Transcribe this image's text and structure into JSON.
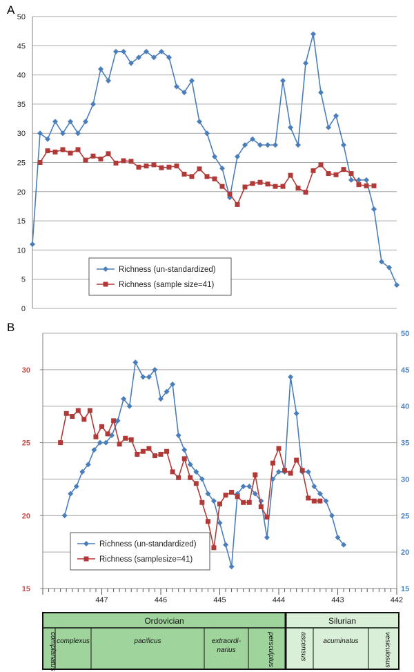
{
  "panels": [
    {
      "label": "A"
    },
    {
      "label": "B"
    }
  ],
  "chart_data": [
    {
      "type": "line",
      "panel": "A",
      "ylim": [
        0,
        50
      ],
      "yticks": [
        0,
        5,
        10,
        15,
        20,
        25,
        30,
        35,
        40,
        45,
        50
      ],
      "grid": true,
      "legend_position": "bottom-center",
      "series": [
        {
          "name": "Richness (un-standardized)",
          "color": "#4a7ebb",
          "marker": "diamond",
          "values": [
            11,
            30,
            29,
            32,
            30,
            32,
            30,
            32,
            35,
            41,
            39,
            44,
            44,
            42,
            43,
            44,
            43,
            44,
            43,
            38,
            37,
            39,
            32,
            30,
            26,
            24,
            19,
            26,
            28,
            29,
            28,
            28,
            28,
            39,
            31,
            28,
            42,
            47,
            37,
            31,
            33,
            28,
            22,
            22,
            22,
            17,
            8,
            7,
            4
          ]
        },
        {
          "name": "Richness (sample size=41)",
          "color": "#b03a37",
          "marker": "square",
          "values": [
            null,
            25,
            27,
            26.8,
            27.2,
            26.6,
            27.2,
            25.4,
            26.1,
            25.6,
            26.5,
            24.9,
            25.3,
            25.2,
            24.2,
            24.4,
            24.6,
            24.1,
            24.2,
            24.4,
            23,
            22.6,
            23.9,
            22.6,
            22.2,
            20.9,
            19.6,
            17.8,
            20.8,
            21.4,
            21.6,
            21.3,
            20.9,
            20.9,
            22.8,
            20.6,
            19.9,
            23.6,
            24.6,
            23.1,
            22.9,
            23.8,
            23.1,
            21.2,
            21,
            21,
            null,
            null,
            null
          ]
        }
      ]
    },
    {
      "type": "line",
      "panel": "B",
      "xlim": [
        448,
        442
      ],
      "xticks": [
        447,
        446,
        445,
        444,
        443,
        442
      ],
      "ylim_left": [
        15,
        32.5
      ],
      "yticks_left": [
        15,
        20,
        25,
        30
      ],
      "ylim_right": [
        15,
        50
      ],
      "yticks_right": [
        15,
        20,
        25,
        30,
        35,
        40,
        45,
        50
      ],
      "left_axis_color": "#c0504d",
      "right_axis_color": "#4f81bd",
      "grid": true,
      "legend_position": "bottom-center",
      "series": [
        {
          "name": "Richness (un-standardized)",
          "axis": "right",
          "color": "#4a7ebb",
          "marker": "diamond",
          "x": [
            447.63,
            447.53,
            447.43,
            447.33,
            447.23,
            447.13,
            447.03,
            446.93,
            446.83,
            446.73,
            446.63,
            446.53,
            446.43,
            446.3,
            446.2,
            446.1,
            446,
            445.9,
            445.8,
            445.7,
            445.6,
            445.5,
            445.4,
            445.3,
            445.2,
            445.1,
            445,
            444.9,
            444.8,
            444.7,
            444.6,
            444.5,
            444.4,
            444.3,
            444.2,
            444.1,
            444,
            443.9,
            443.8,
            443.7,
            443.6,
            443.5,
            443.4,
            443.3,
            443.2,
            443.1,
            443,
            442.9,
            442.8,
            442.7,
            442.6,
            442.5
          ],
          "values": [
            25,
            28,
            29,
            31,
            32,
            34,
            35,
            35,
            36,
            38,
            41,
            40,
            46,
            44,
            44,
            45,
            41,
            42,
            43,
            36,
            34,
            32,
            31,
            30,
            28,
            27,
            24,
            21,
            18,
            28,
            29,
            29,
            28,
            27,
            22,
            30,
            31,
            31,
            44,
            39,
            31,
            31,
            29,
            28,
            27,
            25,
            22,
            21,
            null,
            null,
            null,
            null
          ]
        },
        {
          "name": "Richness (samplesize=41)",
          "axis": "left",
          "color": "#b03a37",
          "marker": "square",
          "x": [
            447.7,
            447.6,
            447.5,
            447.4,
            447.3,
            447.2,
            447.1,
            447,
            446.9,
            446.8,
            446.7,
            446.6,
            446.5,
            446.4,
            446.3,
            446.2,
            446.1,
            446,
            445.9,
            445.8,
            445.7,
            445.6,
            445.5,
            445.4,
            445.3,
            445.2,
            445.1,
            445,
            444.9,
            444.8,
            444.7,
            444.6,
            444.5,
            444.4,
            444.3,
            444.2,
            444.1,
            444,
            443.9,
            443.8,
            443.7,
            443.6,
            443.5,
            443.4,
            443.3,
            443.2,
            443.1,
            443,
            442.9,
            442.8,
            442.7
          ],
          "values": [
            25,
            27,
            26.8,
            27.2,
            26.6,
            27.2,
            25.4,
            26.1,
            25.6,
            26.5,
            24.9,
            25.3,
            25.2,
            24.2,
            24.4,
            24.6,
            24.1,
            24.2,
            24.4,
            23,
            22.6,
            23.9,
            22.6,
            22.2,
            20.9,
            19.6,
            17.8,
            20.8,
            21.4,
            21.6,
            21.3,
            20.9,
            20.9,
            22.8,
            20.6,
            19.9,
            23.6,
            24.6,
            23.1,
            22.9,
            23.8,
            23.1,
            21.2,
            21,
            21,
            null,
            null,
            null,
            null,
            null,
            null
          ]
        }
      ]
    }
  ],
  "timescale": {
    "periods": [
      {
        "name": "Ordovician",
        "color": "#9fd49c"
      },
      {
        "name": "Silurian",
        "color": "#d9efd7"
      }
    ],
    "zones": [
      {
        "name": "complanatus",
        "period": "Ordovician",
        "vertical": true
      },
      {
        "name": "complexus",
        "period": "Ordovician",
        "vertical": false
      },
      {
        "name": "pacificus",
        "period": "Ordovician",
        "vertical": false
      },
      {
        "name": "extraordi-\nnarius",
        "period": "Ordovician",
        "vertical": false
      },
      {
        "name": "persculptus",
        "period": "Ordovician",
        "vertical": true
      },
      {
        "name": "ascensus",
        "period": "Silurian",
        "vertical": true
      },
      {
        "name": "acuminatus",
        "period": "Silurian",
        "vertical": false
      },
      {
        "name": "vesiculosus",
        "period": "Silurian",
        "vertical": true
      }
    ]
  }
}
